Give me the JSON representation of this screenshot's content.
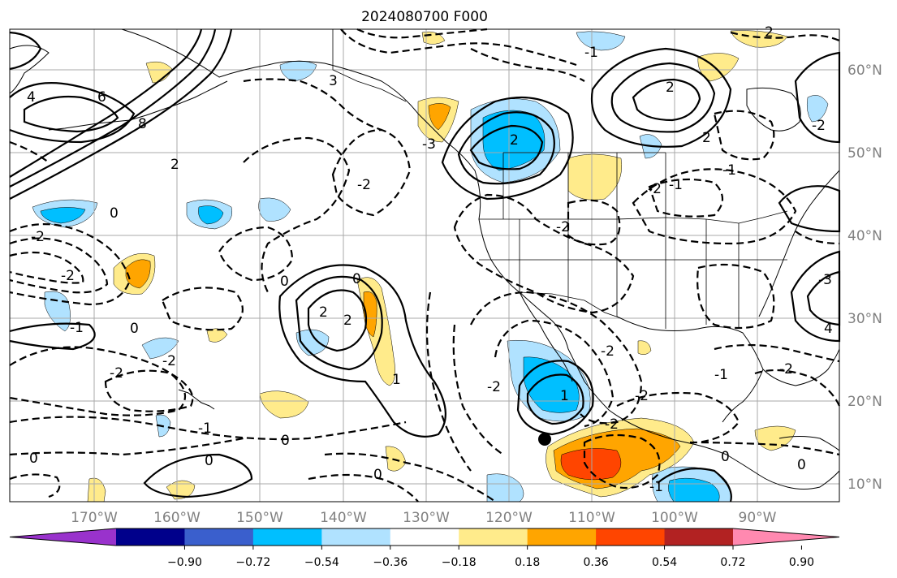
{
  "title": "2024080700 F000",
  "lat_labels": [
    "60°N",
    "50°N",
    "40°N",
    "30°N",
    "20°N",
    "10°N"
  ],
  "lon_labels": [
    "170°W",
    "160°W",
    "150°W",
    "140°W",
    "130°W",
    "120°W",
    "110°W",
    "100°W",
    "90°W"
  ],
  "colorbar": {
    "ticks": [
      "−0.90",
      "−0.72",
      "−0.54",
      "−0.36",
      "−0.18",
      "0.18",
      "0.36",
      "0.54",
      "0.72",
      "0.90"
    ],
    "colors": [
      "#9932cc",
      "#00008b",
      "#3a5fcd",
      "#00bfff",
      "#b0e2ff",
      "#ffffff",
      "#ffeb8b",
      "#ffa500",
      "#ff4500",
      "#b22222",
      "#ff89b0"
    ]
  },
  "contour_labels": {
    "l1": "0",
    "l2": "2",
    "l3": "-2",
    "l4": "4",
    "l5": "6",
    "l6": "8",
    "l7": "-2",
    "l8": "0",
    "l9": "-2",
    "l10": "3",
    "l11": "-2",
    "l12": "-2",
    "l13": "2",
    "l14": "2",
    "l15": "-1",
    "l16": "-1",
    "l17": "-3",
    "l18": "0",
    "l19": "0",
    "l20": "2",
    "l21": "2",
    "l22": "1",
    "l23": "-2",
    "l24": "0",
    "l25": "-1",
    "l26": "0",
    "l27": "0",
    "l28": "-2",
    "l29": "2",
    "l30": "1",
    "l31": "-2",
    "l32": "-2",
    "l33": "-1",
    "l34": "-2",
    "l35": "-1",
    "l36": "0",
    "l37": "-2",
    "l38": "-1",
    "l39": "0",
    "l40": "-2",
    "l41": "4",
    "l42": "-3",
    "l43": "-1",
    "l44": "-2",
    "l45": "2",
    "l46": "0"
  },
  "colors": {
    "lightblue": "#b0e2ff",
    "deepskyblue": "#00bfff",
    "lightyellow": "#ffeb8b",
    "orange": "#ffa500",
    "red": "#ff4500"
  }
}
